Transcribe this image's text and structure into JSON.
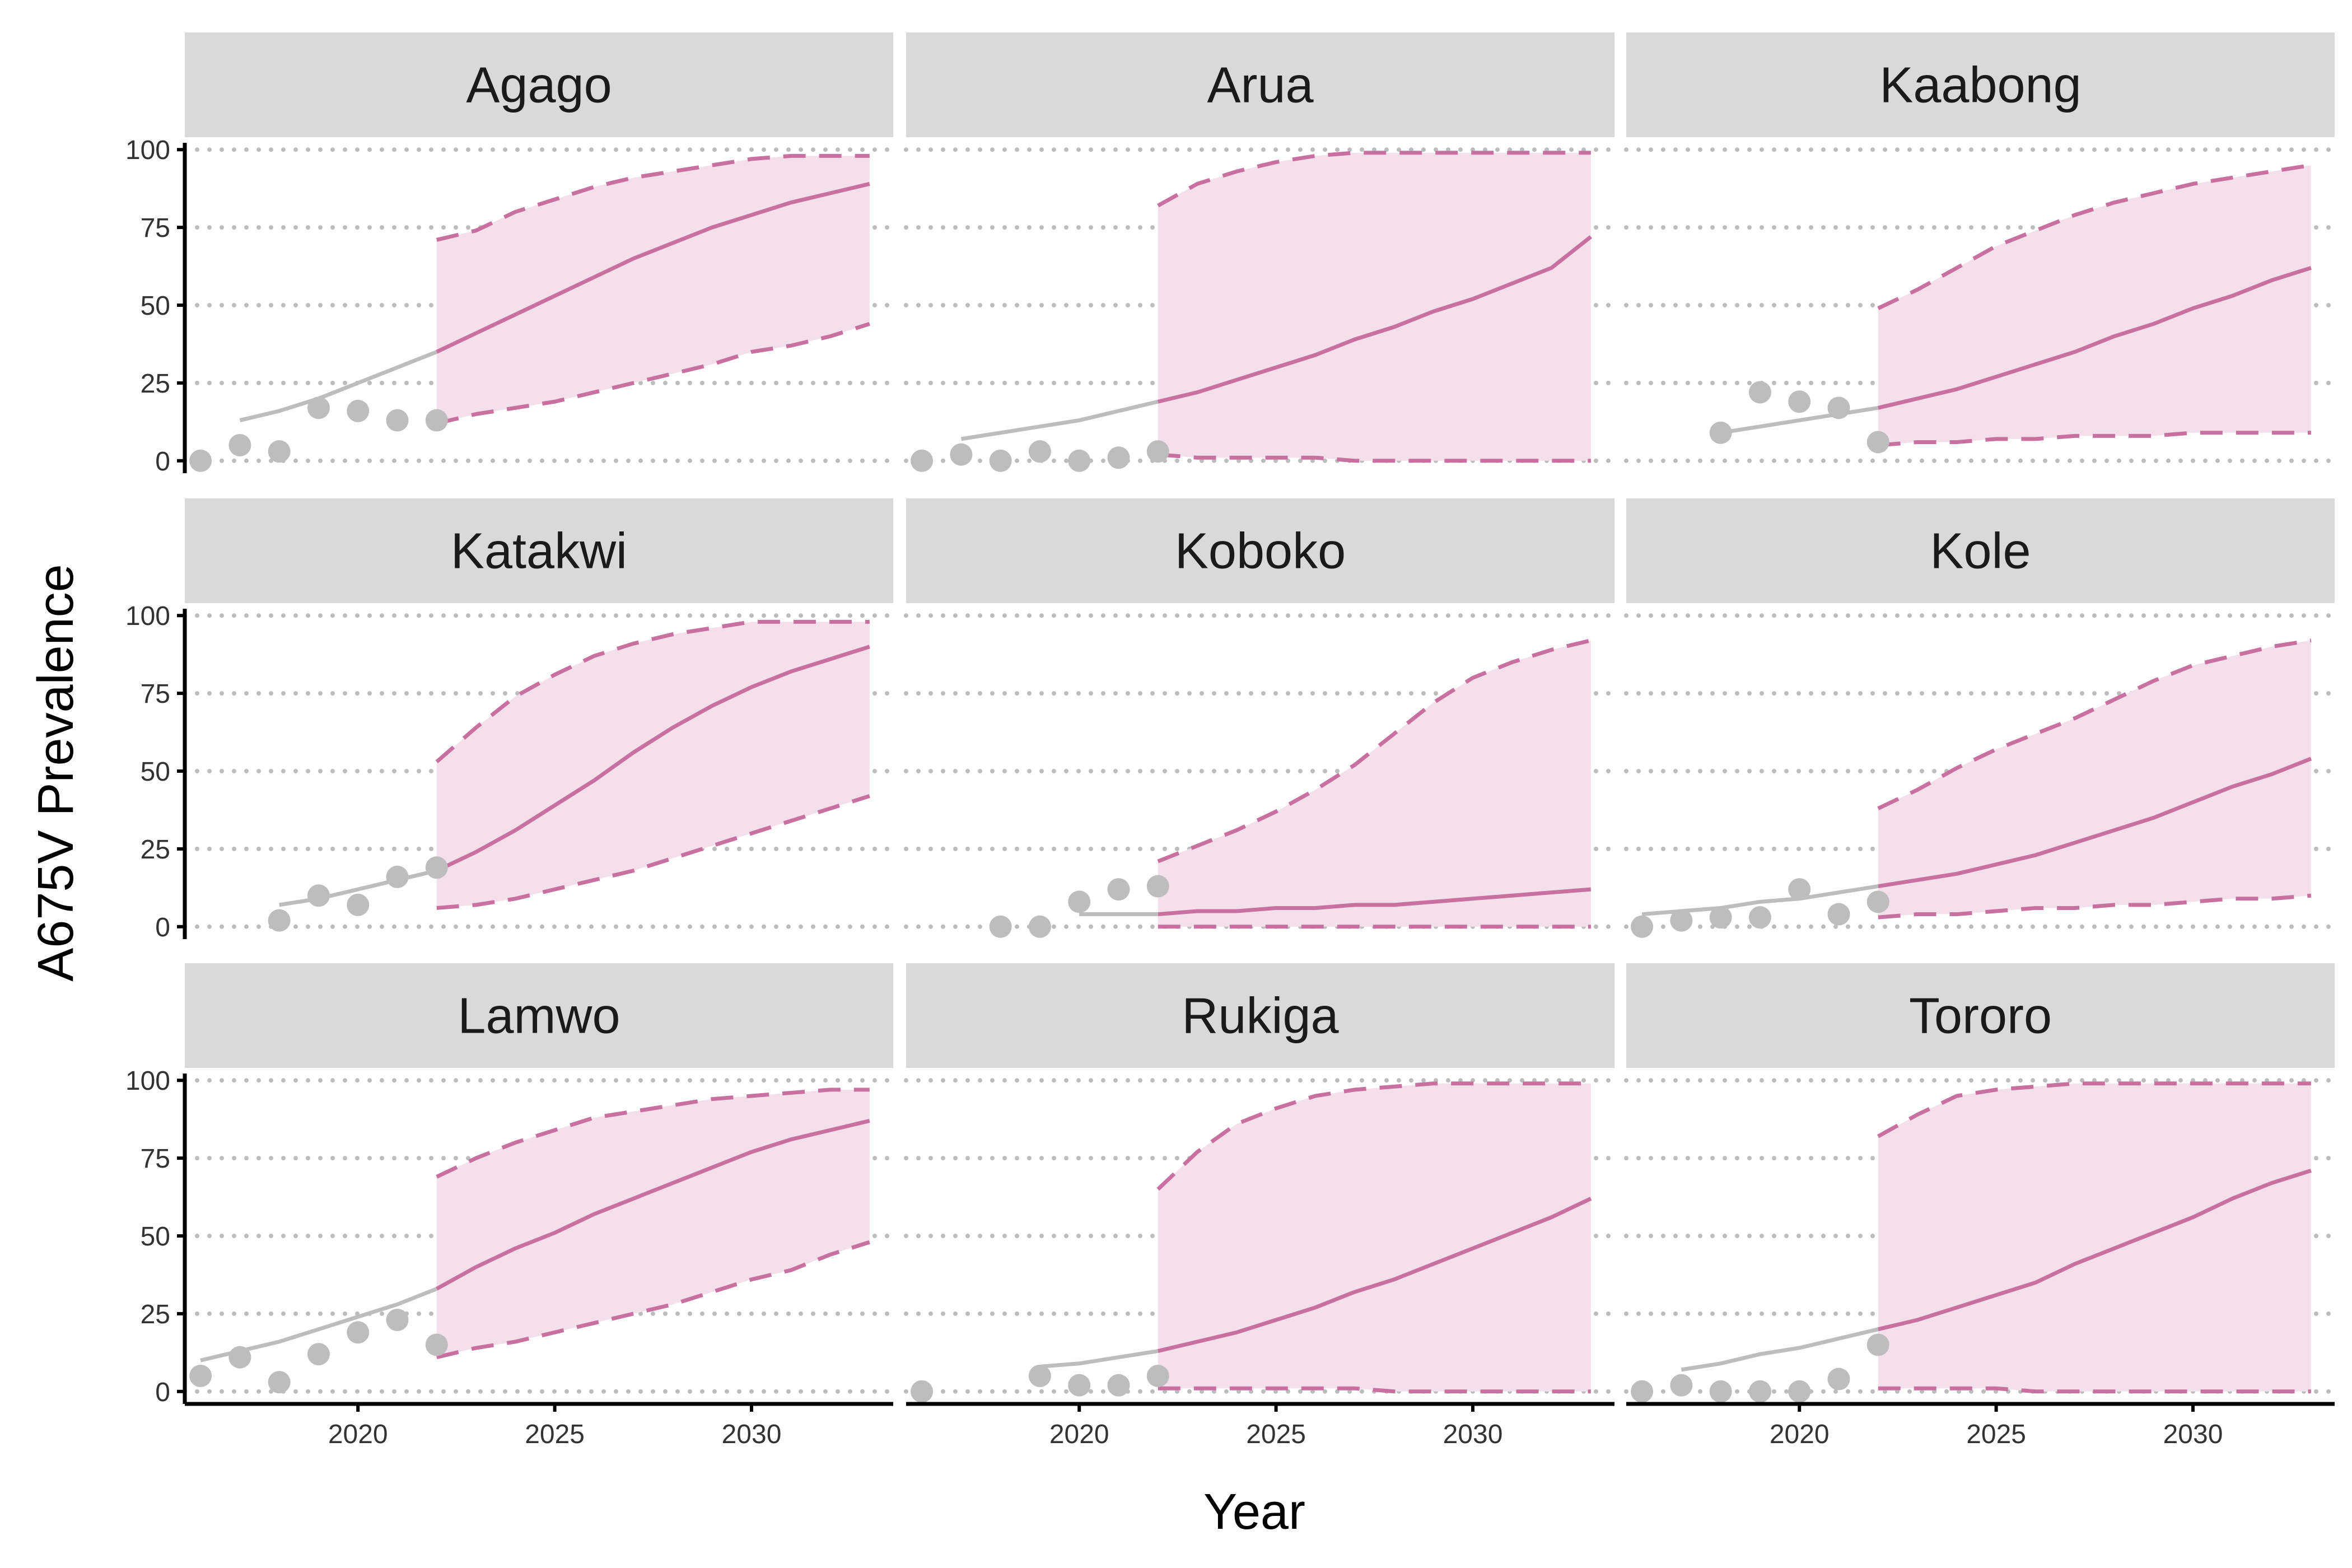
{
  "chart_data": {
    "type": "line",
    "layout": "facet-grid-3x3",
    "xlabel": "Year",
    "ylabel": "A675V Prevalence",
    "xlim": [
      2015.6,
      2033.6
    ],
    "ylim": [
      -4,
      104
    ],
    "x_ticks": [
      2020,
      2025,
      2030
    ],
    "y_ticks": [
      0,
      25,
      50,
      75,
      100
    ],
    "grid": "dotted horizontal",
    "legend": "none",
    "colors": {
      "observed": "#bdbdbd",
      "model_fit": "#bdbdbd",
      "projection": "#c8709f",
      "projection_band": "#f4e0eb",
      "strip_background": "#d9d9d9",
      "grid": "#bdbdbd",
      "axis": "#000000"
    },
    "panels": [
      {
        "name": "Agago",
        "observed": {
          "x": [
            2016,
            2017,
            2018,
            2019,
            2020,
            2021,
            2022
          ],
          "y": [
            0,
            5,
            3,
            17,
            16,
            13,
            13
          ]
        },
        "fit": {
          "x": [
            2017,
            2018,
            2019,
            2020,
            2021,
            2022
          ],
          "y": [
            13,
            16,
            20,
            25,
            30,
            35
          ]
        },
        "projection": {
          "x": [
            2022,
            2023,
            2024,
            2025,
            2026,
            2027,
            2028,
            2029,
            2030,
            2031,
            2032,
            2033
          ],
          "median": [
            35,
            41,
            47,
            53,
            59,
            65,
            70,
            75,
            79,
            83,
            86,
            89
          ],
          "lower": [
            12,
            15,
            17,
            19,
            22,
            25,
            28,
            31,
            35,
            37,
            40,
            44
          ],
          "upper": [
            71,
            74,
            80,
            84,
            88,
            91,
            93,
            95,
            97,
            98,
            98,
            98
          ]
        }
      },
      {
        "name": "Arua",
        "observed": {
          "x": [
            2016,
            2017,
            2018,
            2019,
            2020,
            2021,
            2022
          ],
          "y": [
            0,
            2,
            0,
            3,
            0,
            1,
            3
          ]
        },
        "fit": {
          "x": [
            2017,
            2018,
            2019,
            2020,
            2021,
            2022
          ],
          "y": [
            7,
            9,
            11,
            13,
            16,
            19
          ]
        },
        "projection": {
          "x": [
            2022,
            2023,
            2024,
            2025,
            2026,
            2027,
            2028,
            2029,
            2030,
            2031,
            2032,
            2033
          ],
          "median": [
            19,
            22,
            26,
            30,
            34,
            39,
            43,
            48,
            52,
            57,
            62,
            72
          ],
          "lower": [
            2,
            1,
            1,
            1,
            1,
            0,
            0,
            0,
            0,
            0,
            0,
            0
          ],
          "upper": [
            82,
            89,
            93,
            96,
            98,
            99,
            99,
            99,
            99,
            99,
            99,
            99
          ]
        }
      },
      {
        "name": "Kaabong",
        "observed": {
          "x": [
            2018,
            2019,
            2020,
            2021,
            2022
          ],
          "y": [
            9,
            22,
            19,
            17,
            6
          ]
        },
        "fit": {
          "x": [
            2018,
            2019,
            2020,
            2021,
            2022
          ],
          "y": [
            9,
            11,
            13,
            15,
            17
          ]
        },
        "projection": {
          "x": [
            2022,
            2023,
            2024,
            2025,
            2026,
            2027,
            2028,
            2029,
            2030,
            2031,
            2032,
            2033
          ],
          "median": [
            17,
            20,
            23,
            27,
            31,
            35,
            40,
            44,
            49,
            53,
            58,
            62
          ],
          "lower": [
            5,
            6,
            6,
            7,
            7,
            8,
            8,
            8,
            9,
            9,
            9,
            9
          ],
          "upper": [
            49,
            55,
            62,
            69,
            74,
            79,
            83,
            86,
            89,
            91,
            93,
            95
          ]
        }
      },
      {
        "name": "Katakwi",
        "observed": {
          "x": [
            2018,
            2019,
            2020,
            2021,
            2022
          ],
          "y": [
            2,
            10,
            7,
            16,
            19
          ]
        },
        "fit": {
          "x": [
            2018,
            2019,
            2020,
            2021,
            2022
          ],
          "y": [
            7,
            9,
            12,
            15,
            18
          ]
        },
        "projection": {
          "x": [
            2022,
            2023,
            2024,
            2025,
            2026,
            2027,
            2028,
            2029,
            2030,
            2031,
            2032,
            2033
          ],
          "median": [
            18,
            24,
            31,
            39,
            47,
            56,
            64,
            71,
            77,
            82,
            86,
            90
          ],
          "lower": [
            6,
            7,
            9,
            12,
            15,
            18,
            22,
            26,
            30,
            34,
            38,
            42
          ],
          "upper": [
            53,
            64,
            74,
            81,
            87,
            91,
            94,
            96,
            98,
            98,
            98,
            98
          ]
        }
      },
      {
        "name": "Koboko",
        "observed": {
          "x": [
            2018,
            2019,
            2020,
            2021,
            2022
          ],
          "y": [
            0,
            0,
            8,
            12,
            13
          ]
        },
        "fit": {
          "x": [
            2020,
            2021,
            2022
          ],
          "y": [
            4,
            4,
            4
          ]
        },
        "projection": {
          "x": [
            2022,
            2023,
            2024,
            2025,
            2026,
            2027,
            2028,
            2029,
            2030,
            2031,
            2032,
            2033
          ],
          "median": [
            4,
            5,
            5,
            6,
            6,
            7,
            7,
            8,
            9,
            10,
            11,
            12
          ],
          "lower": [
            0,
            0,
            0,
            0,
            0,
            0,
            0,
            0,
            0,
            0,
            0,
            0
          ],
          "upper": [
            21,
            26,
            31,
            37,
            44,
            52,
            62,
            72,
            80,
            85,
            89,
            92
          ]
        }
      },
      {
        "name": "Kole",
        "observed": {
          "x": [
            2016,
            2017,
            2018,
            2019,
            2020,
            2021,
            2022
          ],
          "y": [
            0,
            2,
            3,
            3,
            12,
            4,
            8
          ]
        },
        "fit": {
          "x": [
            2016,
            2017,
            2018,
            2019,
            2020,
            2021,
            2022
          ],
          "y": [
            4,
            5,
            6,
            8,
            9,
            11,
            13
          ]
        },
        "projection": {
          "x": [
            2022,
            2023,
            2024,
            2025,
            2026,
            2027,
            2028,
            2029,
            2030,
            2031,
            2032,
            2033
          ],
          "median": [
            13,
            15,
            17,
            20,
            23,
            27,
            31,
            35,
            40,
            45,
            49,
            54
          ],
          "lower": [
            3,
            4,
            4,
            5,
            6,
            6,
            7,
            7,
            8,
            9,
            9,
            10
          ],
          "upper": [
            38,
            44,
            51,
            57,
            62,
            67,
            73,
            79,
            84,
            87,
            90,
            92
          ]
        }
      },
      {
        "name": "Lamwo",
        "observed": {
          "x": [
            2016,
            2017,
            2018,
            2019,
            2020,
            2021,
            2022
          ],
          "y": [
            5,
            11,
            3,
            12,
            19,
            23,
            15
          ]
        },
        "fit": {
          "x": [
            2016,
            2017,
            2018,
            2019,
            2020,
            2021,
            2022
          ],
          "y": [
            10,
            13,
            16,
            20,
            24,
            28,
            33
          ]
        },
        "projection": {
          "x": [
            2022,
            2023,
            2024,
            2025,
            2026,
            2027,
            2028,
            2029,
            2030,
            2031,
            2032,
            2033
          ],
          "median": [
            33,
            40,
            46,
            51,
            57,
            62,
            67,
            72,
            77,
            81,
            84,
            87
          ],
          "lower": [
            11,
            14,
            16,
            19,
            22,
            25,
            28,
            32,
            36,
            39,
            44,
            48
          ],
          "upper": [
            69,
            75,
            80,
            84,
            88,
            90,
            92,
            94,
            95,
            96,
            97,
            97
          ]
        }
      },
      {
        "name": "Rukiga",
        "observed": {
          "x": [
            2016,
            2019,
            2020,
            2021,
            2022
          ],
          "y": [
            0,
            5,
            2,
            2,
            5
          ]
        },
        "fit": {
          "x": [
            2019,
            2020,
            2021,
            2022
          ],
          "y": [
            8,
            9,
            11,
            13
          ]
        },
        "projection": {
          "x": [
            2022,
            2023,
            2024,
            2025,
            2026,
            2027,
            2028,
            2029,
            2030,
            2031,
            2032,
            2033
          ],
          "median": [
            13,
            16,
            19,
            23,
            27,
            32,
            36,
            41,
            46,
            51,
            56,
            62
          ],
          "lower": [
            1,
            1,
            1,
            1,
            1,
            1,
            0,
            0,
            0,
            0,
            0,
            0
          ],
          "upper": [
            65,
            77,
            86,
            91,
            95,
            97,
            98,
            99,
            99,
            99,
            99,
            99
          ]
        }
      },
      {
        "name": "Tororo",
        "observed": {
          "x": [
            2016,
            2017,
            2018,
            2019,
            2020,
            2021,
            2022
          ],
          "y": [
            0,
            2,
            0,
            0,
            0,
            4,
            15
          ]
        },
        "fit": {
          "x": [
            2017,
            2018,
            2019,
            2020,
            2021,
            2022
          ],
          "y": [
            7,
            9,
            12,
            14,
            17,
            20
          ]
        },
        "projection": {
          "x": [
            2022,
            2023,
            2024,
            2025,
            2026,
            2027,
            2028,
            2029,
            2030,
            2031,
            2032,
            2033
          ],
          "median": [
            20,
            23,
            27,
            31,
            35,
            41,
            46,
            51,
            56,
            62,
            67,
            71
          ],
          "lower": [
            1,
            1,
            1,
            1,
            0,
            0,
            0,
            0,
            0,
            0,
            0,
            0
          ],
          "upper": [
            82,
            89,
            95,
            97,
            98,
            99,
            99,
            99,
            99,
            99,
            99,
            99
          ]
        }
      }
    ]
  }
}
